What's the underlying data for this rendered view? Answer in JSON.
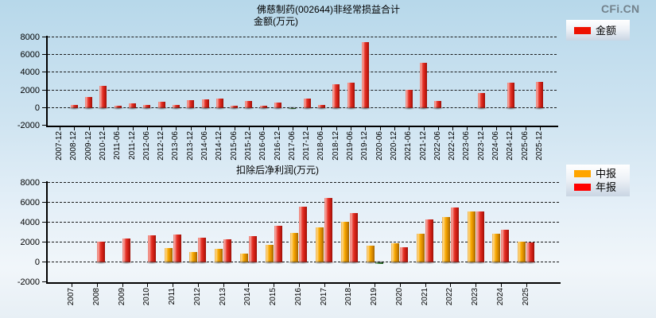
{
  "page": {
    "logo": "CFi.CN"
  },
  "chart_data": [
    {
      "type": "bar",
      "title": "佛慈制药(002644)非经常损益合计",
      "subtitle": "金额(万元)",
      "legend_position": "top-right",
      "grid": true,
      "ylim": [
        -2000,
        8000
      ],
      "yticks": [
        -2000,
        0,
        2000,
        4000,
        6000,
        8000
      ],
      "categories": [
        "2007-12",
        "2008-12",
        "2009-12",
        "2010-12",
        "2011-06",
        "2011-12",
        "2012-06",
        "2012-12",
        "2013-06",
        "2013-12",
        "2014-06",
        "2014-12",
        "2015-06",
        "2015-12",
        "2016-06",
        "2016-12",
        "2017-06",
        "2017-12",
        "2018-06",
        "2018-12",
        "2019-06",
        "2019-12",
        "2020-06",
        "2020-12",
        "2021-06",
        "2021-12",
        "2022-06",
        "2022-12",
        "2023-06",
        "2023-12",
        "2024-06",
        "2024-12",
        "2025-06",
        "2025-12"
      ],
      "series": [
        {
          "name": "金额",
          "color": "#ee1100",
          "negative_color": "#2e9b2e",
          "values": [
            null,
            300,
            1250,
            2500,
            280,
            520,
            300,
            670,
            300,
            900,
            950,
            1050,
            280,
            750,
            230,
            620,
            -120,
            1100,
            310,
            2650,
            2850,
            7500,
            null,
            null,
            2050,
            5100,
            750,
            null,
            null,
            1700,
            null,
            2850,
            null,
            2950
          ]
        }
      ]
    },
    {
      "type": "bar",
      "title": "扣除后净利润(万元)",
      "legend_position": "right",
      "grid": true,
      "ylim": [
        -2000,
        8000
      ],
      "yticks": [
        -2000,
        0,
        2000,
        4000,
        6000,
        8000
      ],
      "categories": [
        "2007",
        "2008",
        "2009",
        "2010",
        "2011",
        "2012",
        "2013",
        "2014",
        "2015",
        "2016",
        "2017",
        "2018",
        "2019",
        "2020",
        "2021",
        "2022",
        "2023",
        "2024",
        "2025"
      ],
      "series": [
        {
          "name": "中报",
          "color": "#ffa500",
          "negative_color": "#2e9b2e",
          "values": [
            null,
            null,
            null,
            null,
            1450,
            1050,
            1400,
            900,
            1800,
            3000,
            3500,
            4100,
            1700,
            1950,
            2900,
            4550,
            5100,
            2850,
            2100
          ]
        },
        {
          "name": "年报",
          "color": "#ff0000",
          "negative_color": "#2e9b2e",
          "values": [
            null,
            2050,
            2400,
            2700,
            2800,
            2450,
            2300,
            2650,
            3650,
            5600,
            6450,
            5000,
            -150,
            1550,
            4300,
            5550,
            5100,
            3300,
            2000
          ]
        }
      ]
    }
  ]
}
